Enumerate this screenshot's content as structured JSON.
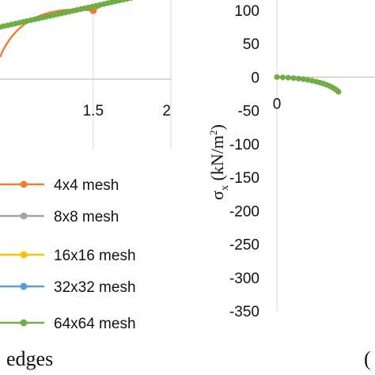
{
  "chart_data": [
    {
      "type": "line",
      "xlim": [
        0.9,
        2.0
      ],
      "ylim": [
        0,
        1
      ],
      "x_ticks": [
        "1.5",
        "2"
      ],
      "x_tick_values": [
        1.5,
        2.0
      ],
      "gridlines": "vertical",
      "caption": "edges",
      "legend_placement": "bottom-left",
      "series": [
        {
          "name": "4x4 mesh",
          "color": "#ED7D31",
          "marker": "circle",
          "x": [
            0.9,
            1.5,
            2.0
          ],
          "y": [
            0.62,
            0.93,
            1.07
          ]
        },
        {
          "name": "8x8 mesh",
          "color": "#A5A5A5",
          "marker": "circle",
          "x": [],
          "y": []
        },
        {
          "name": "16x16 mesh",
          "color": "#FFC000",
          "marker": "circle",
          "x": [],
          "y": []
        },
        {
          "name": "32x32 mesh",
          "color": "#5B9BD5",
          "marker": "circle",
          "x": [],
          "y": []
        },
        {
          "name": "64x64 mesh",
          "color": "#70AD47",
          "marker": "circle",
          "x": [
            0.9,
            1.5,
            2.0
          ],
          "y": [
            0.82,
            0.93,
            1.07
          ]
        }
      ]
    },
    {
      "type": "line",
      "xlim": [
        0,
        0.6
      ],
      "ylim": [
        -350,
        100
      ],
      "y_ticks": [
        "100",
        "50",
        "0",
        "-50",
        "-100",
        "-150",
        "-200",
        "-250",
        "-300",
        "-350"
      ],
      "y_tick_values": [
        100,
        50,
        0,
        -50,
        -100,
        -150,
        -200,
        -250,
        -300,
        -350
      ],
      "x_ticks": [
        "0"
      ],
      "x_tick_values": [
        0
      ],
      "ylabel": "σx (kN/m²)",
      "caption": "(",
      "series": [
        {
          "name": "64x64 mesh",
          "color": "#70AD47",
          "marker": "circle",
          "x": [
            0,
            0.125
          ],
          "y": [
            0,
            -22
          ]
        },
        {
          "name": "4x4 mesh",
          "color": "#ED7D31",
          "marker": "none",
          "x": [
            0.1,
            0.125
          ],
          "y": [
            -12,
            -20
          ]
        }
      ]
    }
  ]
}
